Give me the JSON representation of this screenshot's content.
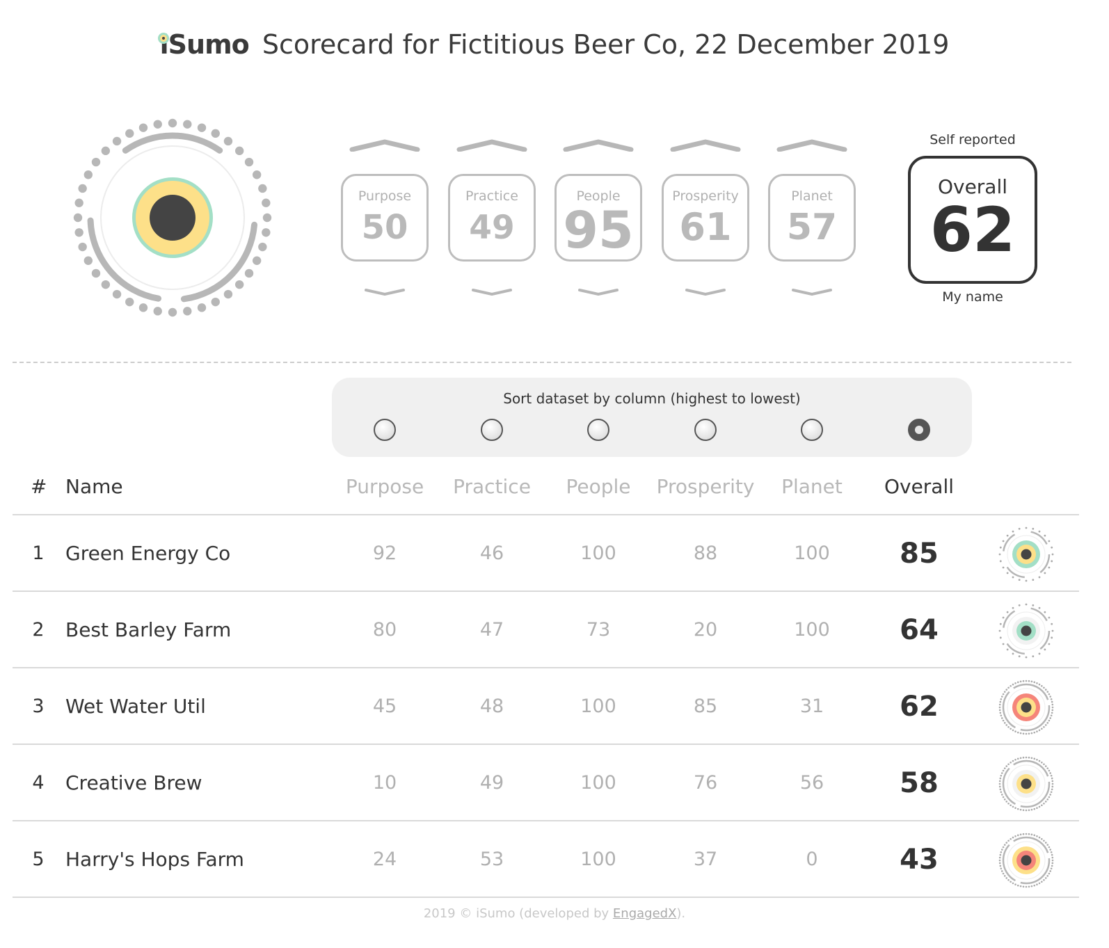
{
  "header": {
    "logo_text": "iSumo",
    "title": "Scorecard for Fictitious Beer Co, 22 December 2019"
  },
  "big_ring": {
    "ring_color": "#b7b7b7",
    "outer_color": "#a3dfc6",
    "inner_color": "#fde089",
    "center_color": "#444444"
  },
  "categories": [
    {
      "label": "Purpose",
      "value": "50"
    },
    {
      "label": "Practice",
      "value": "49"
    },
    {
      "label": "People",
      "value": "95"
    },
    {
      "label": "Prosperity",
      "value": "61"
    },
    {
      "label": "Planet",
      "value": "57"
    }
  ],
  "overall": {
    "top_label": "Self reported",
    "label": "Overall",
    "value": "62",
    "bottom_label": "My name"
  },
  "sort": {
    "title": "Sort dataset by column (highest to lowest)",
    "selected_index": 5
  },
  "table": {
    "columns": [
      "#",
      "Name",
      "Purpose",
      "Practice",
      "People",
      "Prosperity",
      "Planet",
      "Overall"
    ],
    "rows": [
      {
        "rank": "1",
        "name": "Green Energy Co",
        "purpose": "92",
        "practice": "46",
        "people": "100",
        "prosperity": "88",
        "planet": "100",
        "overall": "85",
        "outer_color": "#a3dfc6",
        "inner_color": "#fde089"
      },
      {
        "rank": "2",
        "name": "Best Barley Farm",
        "purpose": "80",
        "practice": "47",
        "people": "73",
        "prosperity": "20",
        "planet": "100",
        "overall": "64",
        "outer_color": "#f2f2f2",
        "inner_color": "#a3dfc6"
      },
      {
        "rank": "3",
        "name": "Wet Water Util",
        "purpose": "45",
        "practice": "48",
        "people": "100",
        "prosperity": "85",
        "planet": "31",
        "overall": "62",
        "outer_color": "#f5857a",
        "inner_color": "#fde089"
      },
      {
        "rank": "4",
        "name": "Creative Brew",
        "purpose": "10",
        "practice": "49",
        "people": "100",
        "prosperity": "76",
        "planet": "56",
        "overall": "58",
        "outer_color": "#f2f2f2",
        "inner_color": "#fde089"
      },
      {
        "rank": "5",
        "name": "Harry's Hops Farm",
        "purpose": "24",
        "practice": "53",
        "people": "100",
        "prosperity": "37",
        "planet": "0",
        "overall": "43",
        "outer_color": "#fde089",
        "inner_color": "#f5857a"
      }
    ]
  },
  "footer": {
    "prefix": "2019 © iSumo (developed by ",
    "link": "EngagedX",
    "suffix": ")."
  }
}
